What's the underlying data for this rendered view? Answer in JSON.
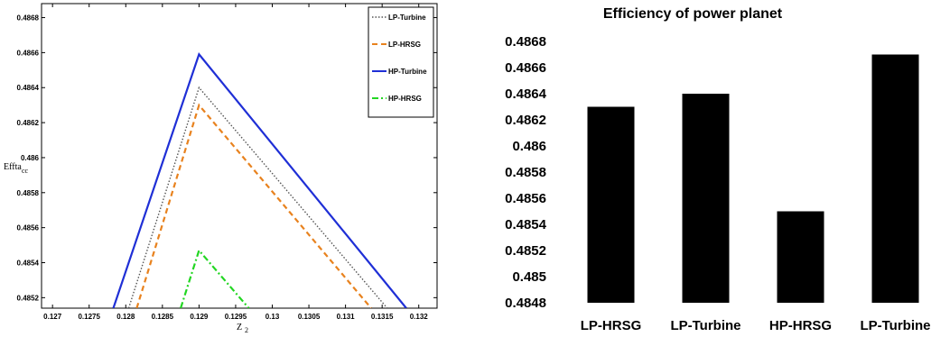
{
  "chart_data": [
    {
      "type": "line",
      "title": "",
      "xlabel": "Z",
      "xlabel_sub": "2",
      "ylabel": "Effta",
      "ylabel_sub": "cc",
      "xlim": [
        0.12685,
        0.13225
      ],
      "ylim": [
        0.48514,
        0.48688
      ],
      "x_ticks": [
        "0.127",
        "0.1275",
        "0.128",
        "0.1285",
        "0.129",
        "0.1295",
        "0.13",
        "0.1305",
        "0.131",
        "0.1315",
        "0.132"
      ],
      "x_tick_values": [
        0.127,
        0.1275,
        0.128,
        0.1285,
        0.129,
        0.1295,
        0.13,
        0.1305,
        0.131,
        0.1315,
        0.132
      ],
      "y_ticks": [
        "0.4852",
        "0.4854",
        "0.4856",
        "0.4858",
        "0.486",
        "0.4862",
        "0.4864",
        "0.4866",
        "0.4868"
      ],
      "y_tick_values": [
        0.4852,
        0.4854,
        0.4856,
        0.4858,
        0.486,
        0.4862,
        0.4864,
        0.4866,
        0.4868
      ],
      "grid": false,
      "legend_position": "top-right",
      "series": [
        {
          "name": "LP-Turbine",
          "color": "#555555",
          "dash": "dotted",
          "x": [
            0.12804,
            0.129,
            0.13157
          ],
          "y": [
            0.48514,
            0.4864,
            0.48514
          ]
        },
        {
          "name": "LP-HRSG",
          "color": "#e8821e",
          "dash": "dashed",
          "x": [
            0.12815,
            0.129,
            0.13135
          ],
          "y": [
            0.48514,
            0.4863,
            0.48514
          ]
        },
        {
          "name": "HP-Turbine",
          "color": "#1f2fd6",
          "dash": "solid",
          "x": [
            0.12783,
            0.129,
            0.13183
          ],
          "y": [
            0.48514,
            0.48659,
            0.48514
          ]
        },
        {
          "name": "HP-HRSG",
          "color": "#22d622",
          "dash": "dashdot",
          "x": [
            0.12875,
            0.129,
            0.12968
          ],
          "y": [
            0.48514,
            0.48547,
            0.48514
          ]
        }
      ]
    },
    {
      "type": "bar",
      "title": "Efficiency of power planet",
      "xlabel": "",
      "ylabel": "",
      "categories": [
        "LP-HRSG",
        "LP-Turbine",
        "HP-HRSG",
        "LP-Turbine"
      ],
      "values": [
        0.4863,
        0.4864,
        0.4855,
        0.4867
      ],
      "ylim": [
        0.4848,
        0.4868
      ],
      "y_ticks": [
        "0.4848",
        "0.485",
        "0.4852",
        "0.4854",
        "0.4856",
        "0.4858",
        "0.486",
        "0.4862",
        "0.4864",
        "0.4866",
        "0.4868"
      ],
      "y_tick_values": [
        0.4848,
        0.485,
        0.4852,
        0.4854,
        0.4856,
        0.4858,
        0.486,
        0.4862,
        0.4864,
        0.4866,
        0.4868
      ],
      "grid": false,
      "bar_color": "#000000"
    }
  ]
}
